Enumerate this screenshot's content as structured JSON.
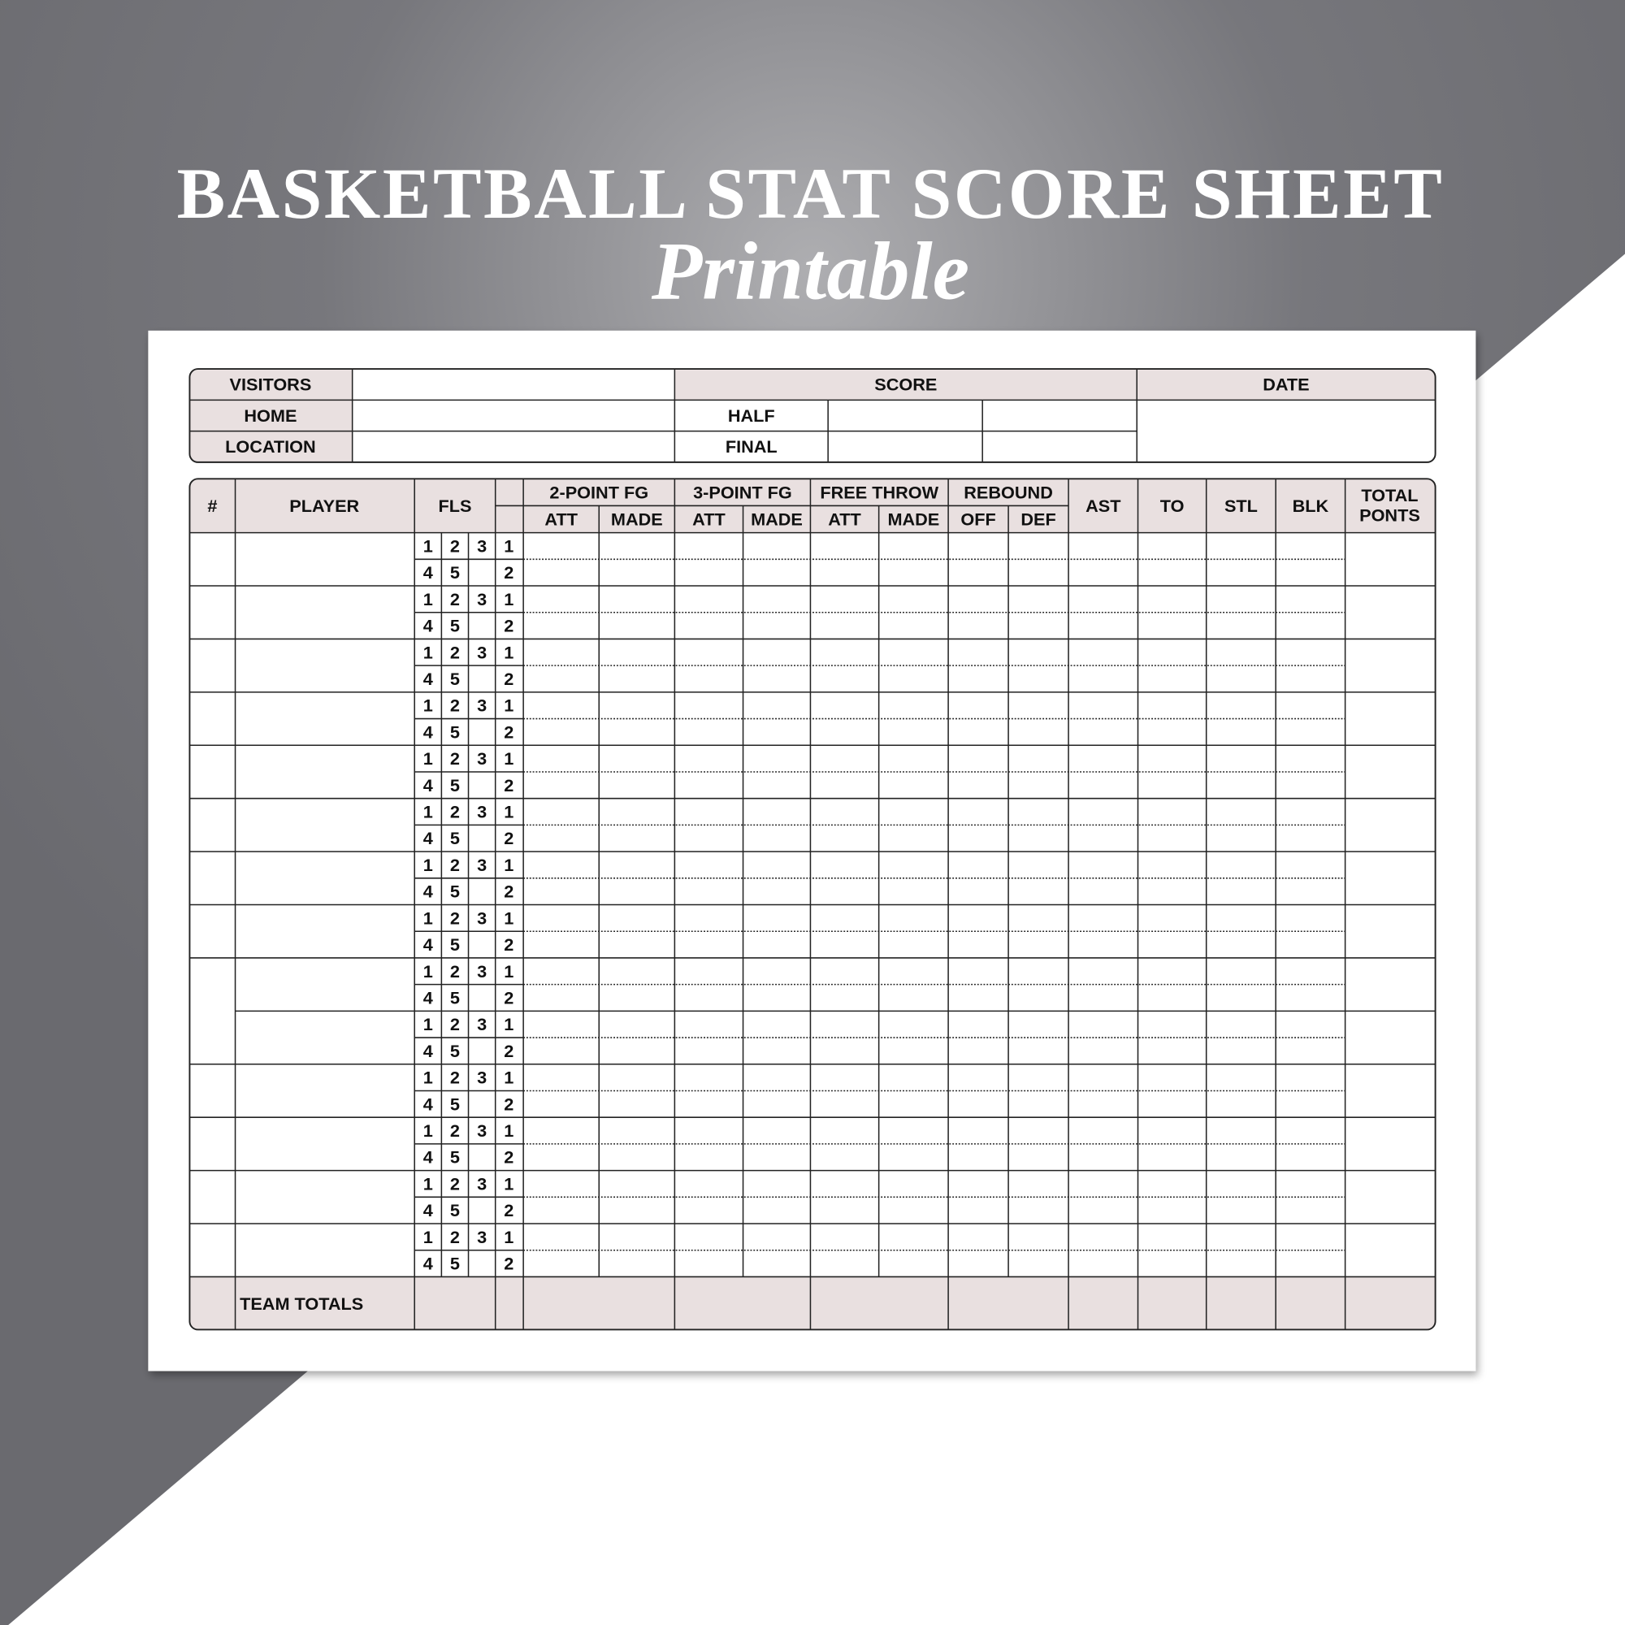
{
  "title": "BASKETBALL STAT SCORE SHEET",
  "subtitle": "Printable",
  "info": {
    "visitors": "VISITORS",
    "home": "HOME",
    "location": "LOCATION",
    "score": "SCORE",
    "date": "DATE",
    "half": "HALF",
    "final": "FINAL"
  },
  "table": {
    "columns": {
      "number": "#",
      "player": "PLAYER",
      "fouls": "FLS",
      "two_point": {
        "label": "2-POINT FG",
        "att": "ATT",
        "made": "MADE"
      },
      "three_point": {
        "label": "3-POINT FG",
        "att": "ATT",
        "made": "MADE"
      },
      "free_throw": {
        "label": "FREE THROW",
        "att": "ATT",
        "made": "MADE"
      },
      "rebound": {
        "label": "REBOUND",
        "off": "OFF",
        "def": "DEF"
      },
      "ast": "AST",
      "to": "TO",
      "stl": "STL",
      "blk": "BLK",
      "total_points": [
        "TOTAL",
        "PONTS"
      ]
    },
    "fouls": {
      "top": [
        "1",
        "2",
        "3"
      ],
      "bottom": [
        "4",
        "5"
      ]
    },
    "technical": [
      "1",
      "2"
    ],
    "team_totals": "TEAM TOTALS"
  }
}
